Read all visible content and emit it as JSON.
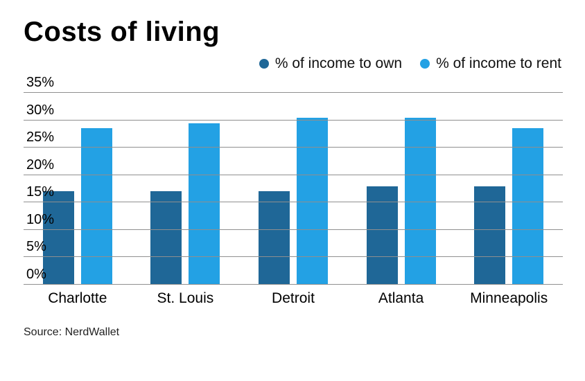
{
  "chart_data": {
    "type": "bar",
    "title": "Costs of living",
    "source": "Source: NerdWallet",
    "categories": [
      "Charlotte",
      "St. Louis",
      "Detroit",
      "Atlanta",
      "Minneapolis"
    ],
    "series": [
      {
        "name": "% of income to own",
        "color": "#1f6797",
        "values": [
          17,
          17,
          17,
          18,
          18
        ]
      },
      {
        "name": "% of income to rent",
        "color": "#23a1e4",
        "values": [
          28.5,
          29.5,
          30.5,
          30.5,
          28.5
        ]
      }
    ],
    "ticks": [
      0,
      5,
      10,
      15,
      20,
      25,
      30,
      35
    ],
    "ylim": [
      0,
      35
    ],
    "xlabel": "",
    "ylabel": "",
    "grid": true,
    "legend_position": "top-right",
    "colors": {
      "own": "#1f6797",
      "rent": "#23a1e4",
      "gridline": "#8f8f8f",
      "background": "#ffffff"
    }
  }
}
